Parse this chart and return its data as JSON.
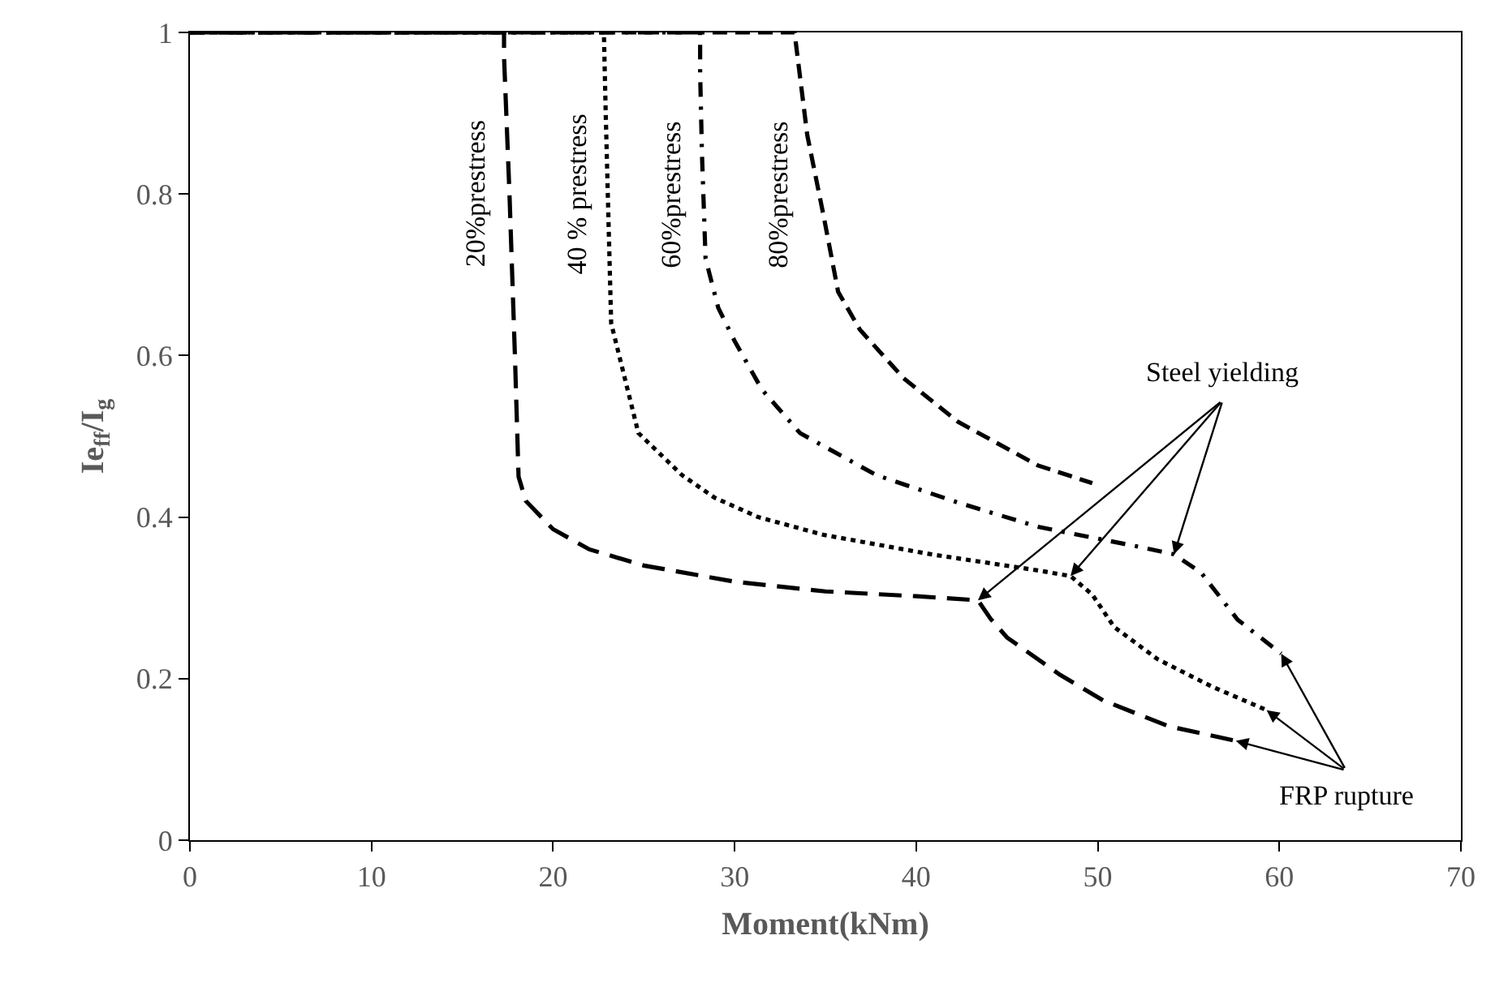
{
  "chart_data": {
    "type": "line",
    "xlabel": "Moment(kNm)",
    "ylabel": "Ie$_{ff}$/I$_{g}$",
    "xlim": [
      0,
      70
    ],
    "xticks": [
      0,
      10,
      20,
      30,
      40,
      50,
      60,
      70
    ],
    "ylim": [
      0,
      1
    ],
    "yticks": [
      0,
      0.2,
      0.4,
      0.6,
      0.8,
      1
    ],
    "grid": false,
    "legend": false,
    "marker": "none",
    "series": [
      {
        "name": "20%prestress",
        "color": "#000000",
        "line_style": "longdash",
        "x": [
          0,
          17.3,
          17.3,
          17.6,
          17.9,
          18.1,
          18.5,
          20,
          22,
          25,
          30,
          35,
          40,
          43.4,
          44.1,
          45,
          47.9,
          50.3,
          53.9,
          57.6
        ],
        "values": [
          1,
          1,
          0.97,
          0.8,
          0.6,
          0.45,
          0.42,
          0.385,
          0.36,
          0.34,
          0.32,
          0.308,
          0.302,
          0.297,
          0.274,
          0.251,
          0.205,
          0.173,
          0.141,
          0.123
        ]
      },
      {
        "name": "40 % prestress",
        "color": "#000000",
        "line_style": "dotted",
        "x": [
          0,
          22.8,
          22.9,
          23.2,
          24.7,
          27.1,
          28.9,
          31.3,
          34.9,
          40.8,
          46.7,
          48.5,
          49.7,
          50.9,
          53.3,
          56.3,
          59.3
        ],
        "values": [
          1,
          1,
          0.9,
          0.64,
          0.504,
          0.452,
          0.424,
          0.4,
          0.378,
          0.354,
          0.334,
          0.327,
          0.304,
          0.264,
          0.224,
          0.19,
          0.161
        ]
      },
      {
        "name": "60%prestress",
        "color": "#000000",
        "line_style": "dashdot",
        "x": [
          0,
          28.1,
          28.1,
          28.2,
          28.4,
          29.1,
          30.0,
          31.5,
          33.6,
          37.8,
          42.3,
          46.7,
          52.1,
          54.2,
          55.7,
          57.7,
          60.1
        ],
        "values": [
          1,
          1,
          0.95,
          0.85,
          0.72,
          0.659,
          0.618,
          0.558,
          0.504,
          0.452,
          0.418,
          0.388,
          0.364,
          0.354,
          0.331,
          0.273,
          0.231
        ]
      },
      {
        "name": "80%prestress",
        "color": "#000000",
        "line_style": "dashed",
        "x": [
          0,
          33.3,
          34.0,
          34.9,
          35.7,
          36.9,
          39.3,
          42.3,
          46.7,
          49.7
        ],
        "values": [
          1,
          1,
          0.873,
          0.773,
          0.679,
          0.632,
          0.572,
          0.518,
          0.464,
          0.442
        ]
      }
    ],
    "annotations": [
      {
        "text": "Steel yielding",
        "x": 54.2,
        "y": 0.354
      },
      {
        "text": "FRP rupture",
        "x": 60.1,
        "y": 0.231
      }
    ]
  }
}
